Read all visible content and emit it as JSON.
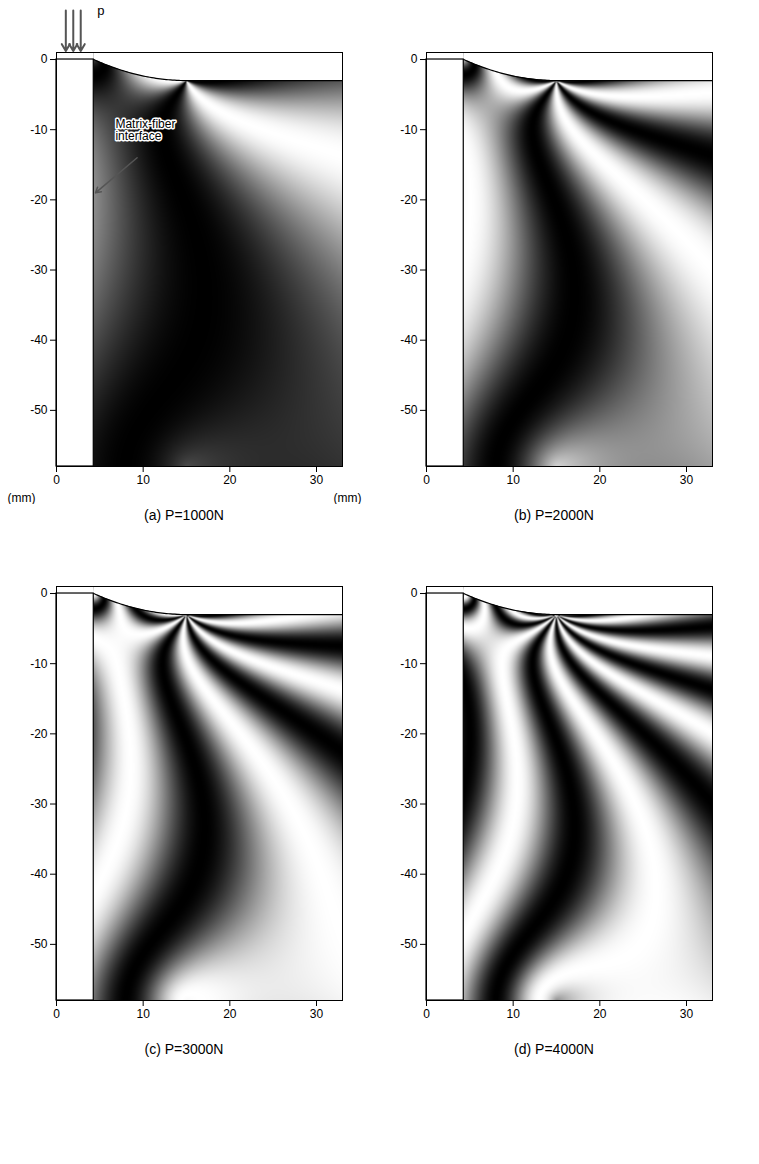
{
  "chart_data": [
    {
      "type": "heatmap",
      "title": "(a) P=1000N",
      "load": 1000,
      "xlim": [
        0,
        33
      ],
      "ylim": [
        -58,
        1
      ],
      "xticks": [
        0,
        10,
        20,
        30
      ],
      "yticks": [
        0,
        -10,
        -20,
        -30,
        -40,
        -50
      ],
      "x_label": "(mm)",
      "y_label": "(mm)",
      "load_label": "p",
      "annotation": "Matrix-fiber interface",
      "fiber_radius": 4.3,
      "surface_level": -3,
      "meniscus_end": 15
    },
    {
      "type": "heatmap",
      "title": "(b) P=2000N",
      "load": 2000,
      "xlim": [
        0,
        33
      ],
      "ylim": [
        -58,
        1
      ],
      "xticks": [
        0,
        10,
        20,
        30
      ],
      "yticks": [
        0,
        -10,
        -20,
        -30,
        -40,
        -50
      ],
      "fiber_radius": 4.3,
      "surface_level": -3,
      "meniscus_end": 15
    },
    {
      "type": "heatmap",
      "title": "(c) P=3000N",
      "load": 3000,
      "xlim": [
        0,
        33
      ],
      "ylim": [
        -58,
        1
      ],
      "xticks": [
        0,
        10,
        20,
        30
      ],
      "yticks": [
        0,
        -10,
        -20,
        -30,
        -40,
        -50
      ],
      "fiber_radius": 4.3,
      "surface_level": -3,
      "meniscus_end": 15
    },
    {
      "type": "heatmap",
      "title": "(d) P=4000N",
      "load": 4000,
      "xlim": [
        0,
        33
      ],
      "ylim": [
        -58,
        1
      ],
      "xticks": [
        0,
        10,
        20,
        30
      ],
      "yticks": [
        0,
        -10,
        -20,
        -30,
        -40,
        -50
      ],
      "fiber_radius": 4.3,
      "surface_level": -3,
      "meniscus_end": 15
    }
  ]
}
